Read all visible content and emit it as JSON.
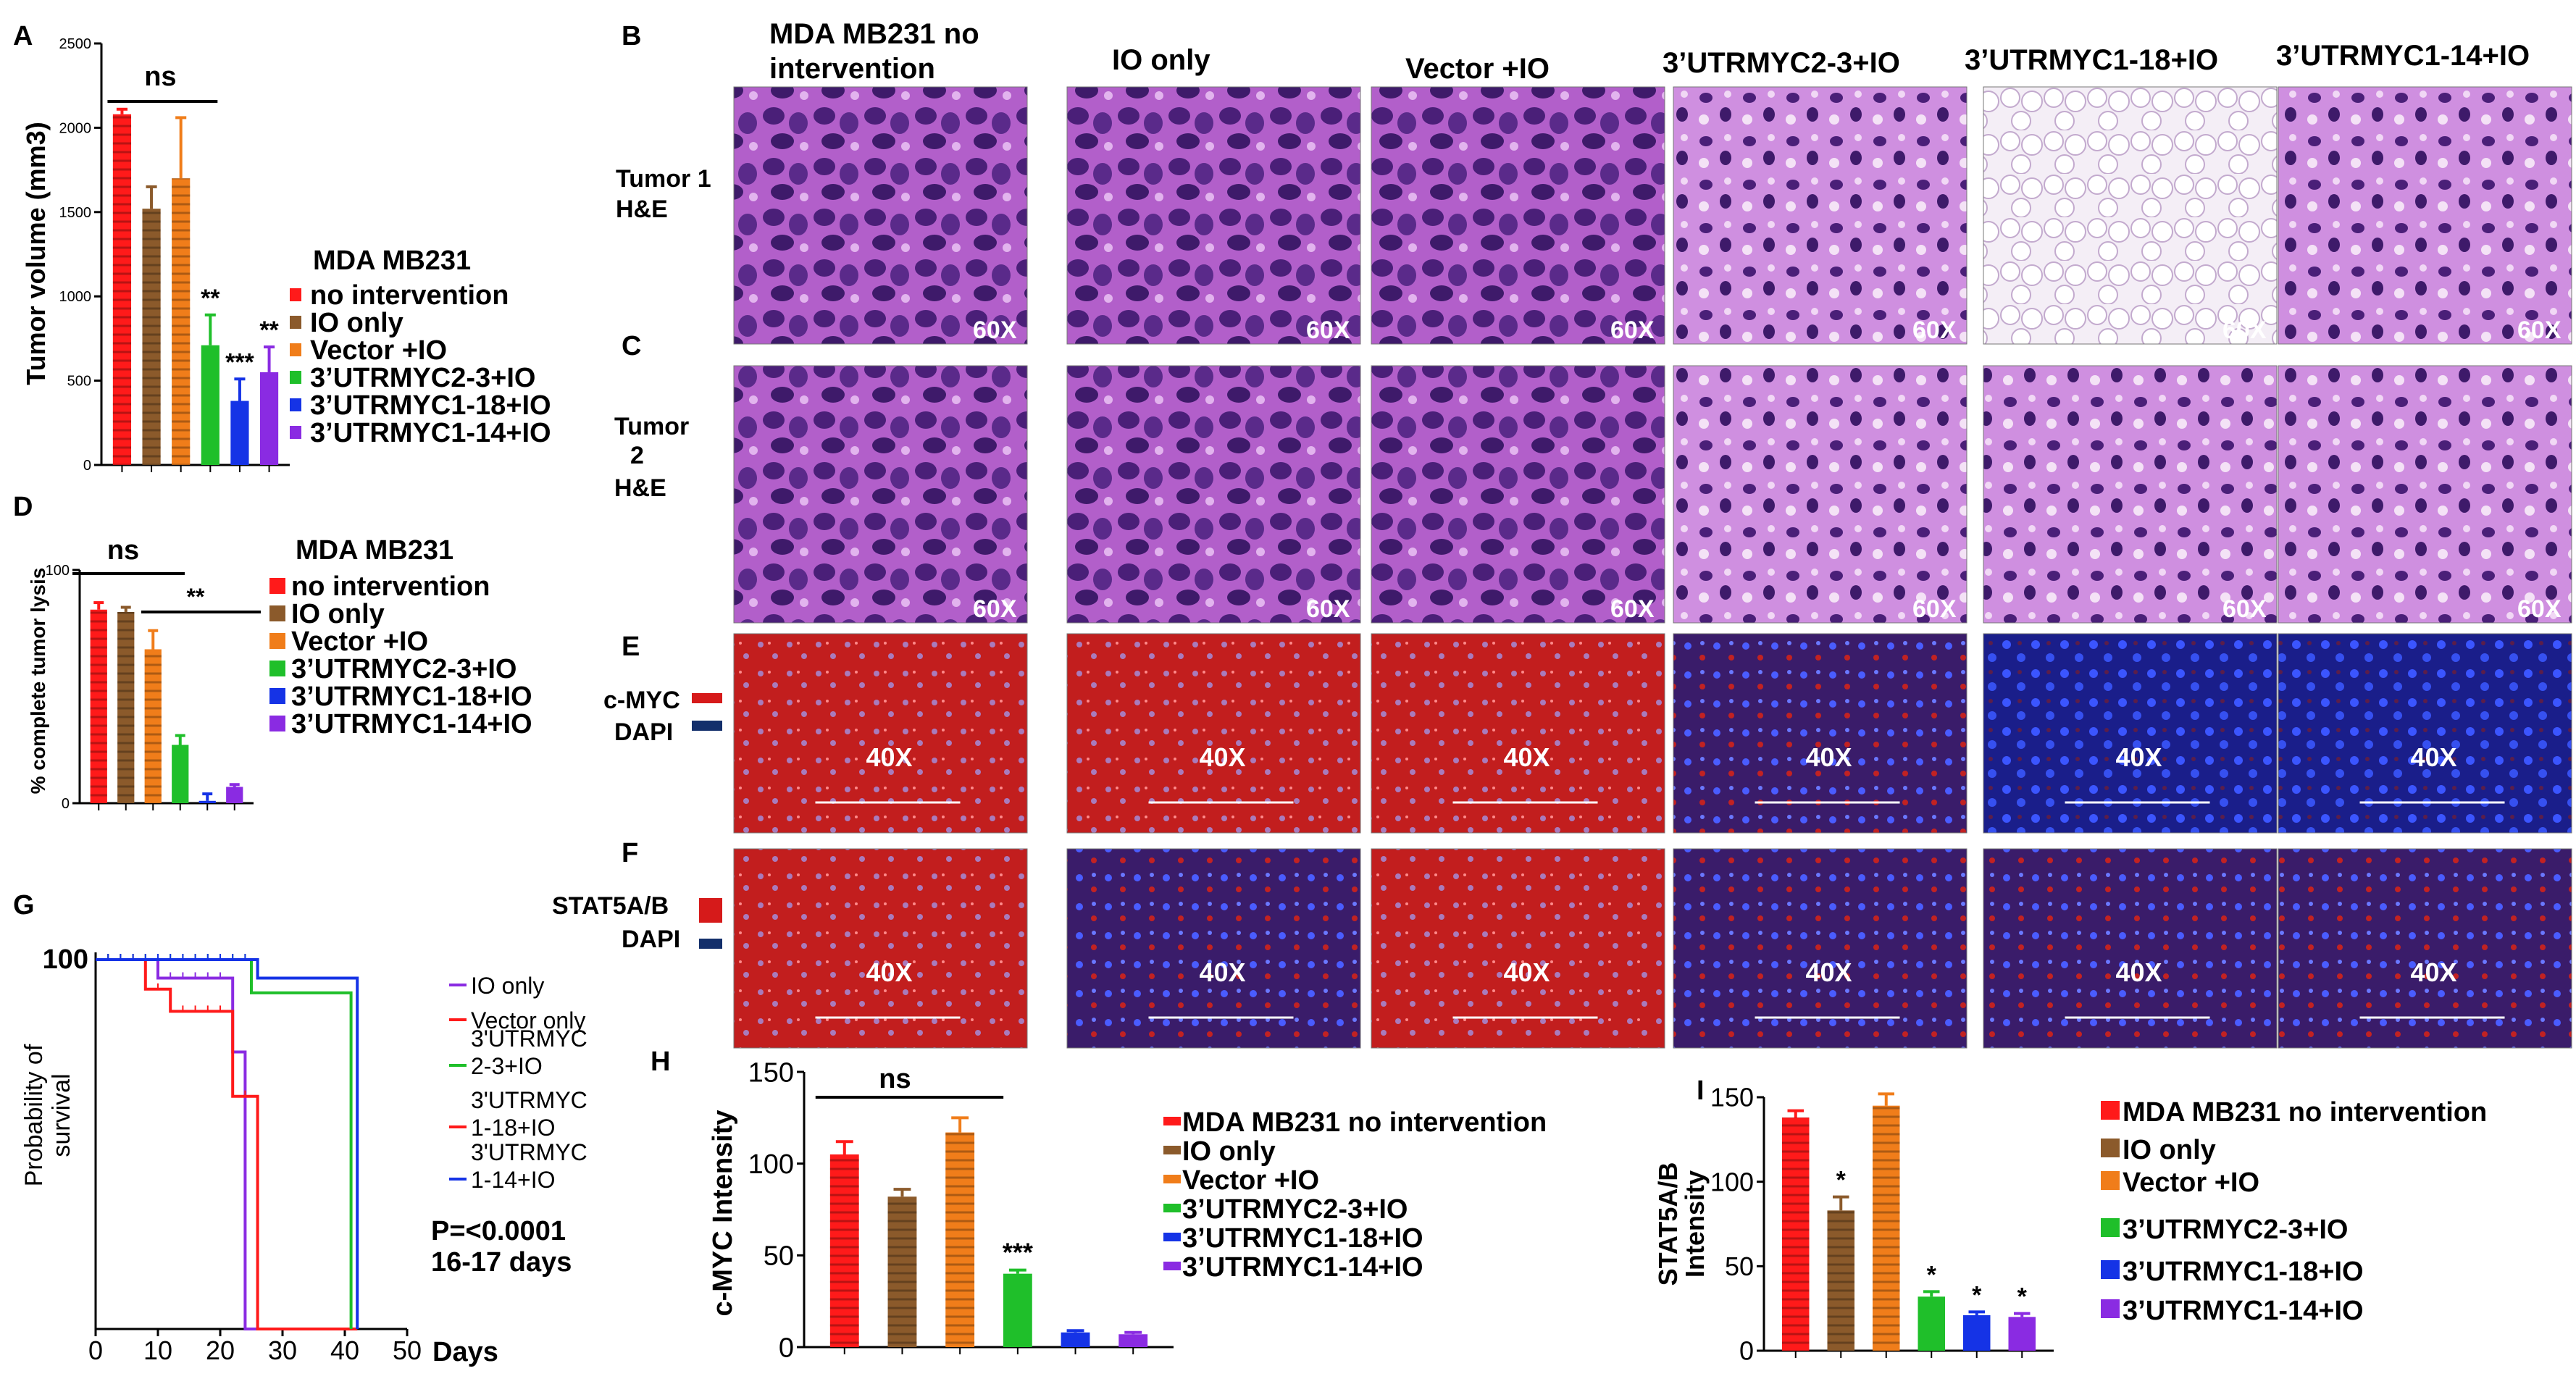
{
  "colors": {
    "red": "#ff1a1a",
    "brown": "#8b5a2b",
    "orange": "#f07d1a",
    "green": "#1fbf2a",
    "blue": "#1533e6",
    "purple": "#8a2be2",
    "he_dark": "#5a2a8a",
    "he_light": "#c77ad6",
    "he_pale": "#e8d6ea",
    "if_red": "#b81818",
    "if_blue": "#2a3fd0",
    "if_dark": "#120a24"
  },
  "panels": {
    "A": "A",
    "B": "B",
    "C": "C",
    "D": "D",
    "E": "E",
    "F": "F",
    "G": "G",
    "H": "H",
    "I": "I"
  },
  "column_titles": [
    "MDA MB231 no",
    "intervention",
    "IO only",
    "Vector +IO",
    "3’UTRMYC2-3+IO",
    "3’UTRMYC1-18+IO",
    "3’UTRMYC1-14+IO"
  ],
  "row_labels": {
    "tumor1_a": "Tumor 1",
    "tumor1_b": "H&E",
    "tumor2_a": "Tumor",
    "tumor2_b": "2",
    "tumor2_c": "H&E",
    "cmyc": "c-MYC",
    "dapi_e": "DAPI",
    "stat": "STAT5A/B",
    "dapi_f": "DAPI"
  },
  "magnifications": {
    "he": "60X",
    "if": "40X"
  },
  "chart_data": [
    {
      "panel": "A",
      "type": "bar",
      "ylabel": "Tumor volume (mm3)",
      "ylim": [
        0,
        2500
      ],
      "yticks": [
        "0",
        "500",
        "1000",
        "1500",
        "2000",
        "2500"
      ],
      "legend_title": "MDA MB231",
      "series": [
        "no intervention",
        "IO only",
        "Vector +IO",
        "3’UTRMYC2-3+IO",
        "3’UTRMYC1-18+IO",
        "3’UTRMYC1-14+IO"
      ],
      "values": [
        2080,
        1520,
        1700,
        710,
        380,
        550
      ],
      "errors": [
        30,
        130,
        360,
        180,
        130,
        150
      ],
      "bracket": "ns",
      "stars": [
        "",
        "",
        "",
        "**",
        "***",
        "**"
      ]
    },
    {
      "panel": "D",
      "type": "bar",
      "ylabel": "% complete tumor lysis",
      "ylim": [
        0,
        100
      ],
      "yticks": [
        "0",
        "100"
      ],
      "legend_title": "MDA MB231",
      "series": [
        "no intervention",
        "IO only",
        "Vector +IO",
        "3’UTRMYC2-3+IO",
        "3’UTRMYC1-18+IO",
        "3’UTRMYC1-14+IO"
      ],
      "values": [
        83,
        82,
        66,
        25,
        1,
        7
      ],
      "errors": [
        3,
        2,
        8,
        4,
        3,
        1
      ],
      "bracket": "ns",
      "bracket2": "**"
    },
    {
      "panel": "G",
      "type": "line",
      "ylabel_1": "Probability of",
      "ylabel_2": "survival",
      "xlabel": "Days",
      "xticks": [
        "0",
        "10",
        "20",
        "30",
        "40",
        "50"
      ],
      "ytick": "100",
      "legend": [
        "IO only",
        "Vector only",
        "3'UTRMYC",
        "2-3+IO",
        "3'UTRMYC",
        "1-18+IO",
        "3'UTRMYC",
        "1-14+IO"
      ],
      "pvalue": "P=<0.0001",
      "days_note": "16-17 days",
      "curves": [
        {
          "color": "purple",
          "x": [
            0,
            10,
            22,
            24,
            42
          ],
          "y": [
            100,
            95,
            75,
            0,
            0
          ]
        },
        {
          "color": "red",
          "x": [
            0,
            8,
            12,
            22,
            26,
            42
          ],
          "y": [
            100,
            92,
            86,
            63,
            0,
            0
          ]
        },
        {
          "color": "green",
          "x": [
            0,
            25,
            41
          ],
          "y": [
            100,
            91,
            0
          ]
        },
        {
          "color": "blue",
          "x": [
            0,
            26,
            42
          ],
          "y": [
            100,
            95,
            0
          ]
        }
      ]
    },
    {
      "panel": "H",
      "type": "bar",
      "ylabel": "c-MYC Intensity",
      "ylim": [
        0,
        150
      ],
      "yticks": [
        "0",
        "50",
        "100",
        "150"
      ],
      "series": [
        "MDA MB231 no intervention",
        "IO only",
        "Vector +IO",
        "3’UTRMYC2-3+IO",
        "3’UTRMYC1-18+IO",
        "3’UTRMYC1-14+IO"
      ],
      "values": [
        105,
        82,
        117,
        40,
        8,
        7
      ],
      "errors": [
        7,
        4,
        8,
        2,
        1,
        1
      ],
      "bracket": "ns",
      "stars": [
        "",
        "",
        "",
        "***",
        "",
        ""
      ]
    },
    {
      "panel": "I",
      "type": "bar",
      "ylabel_1": "STAT5A/B",
      "ylabel_2": "Intensity",
      "ylim": [
        0,
        150
      ],
      "yticks": [
        "0",
        "50",
        "100",
        "150"
      ],
      "series": [
        "MDA MB231 no intervention",
        "IO only",
        "Vector +IO",
        "3’UTRMYC2-3+IO",
        "3’UTRMYC1-18+IO",
        "3’UTRMYC1-14+IO"
      ],
      "values": [
        138,
        83,
        145,
        32,
        21,
        20
      ],
      "errors": [
        4,
        8,
        7,
        3,
        2,
        2
      ],
      "stars": [
        "",
        "*",
        "",
        "*",
        "*",
        "*"
      ]
    }
  ]
}
